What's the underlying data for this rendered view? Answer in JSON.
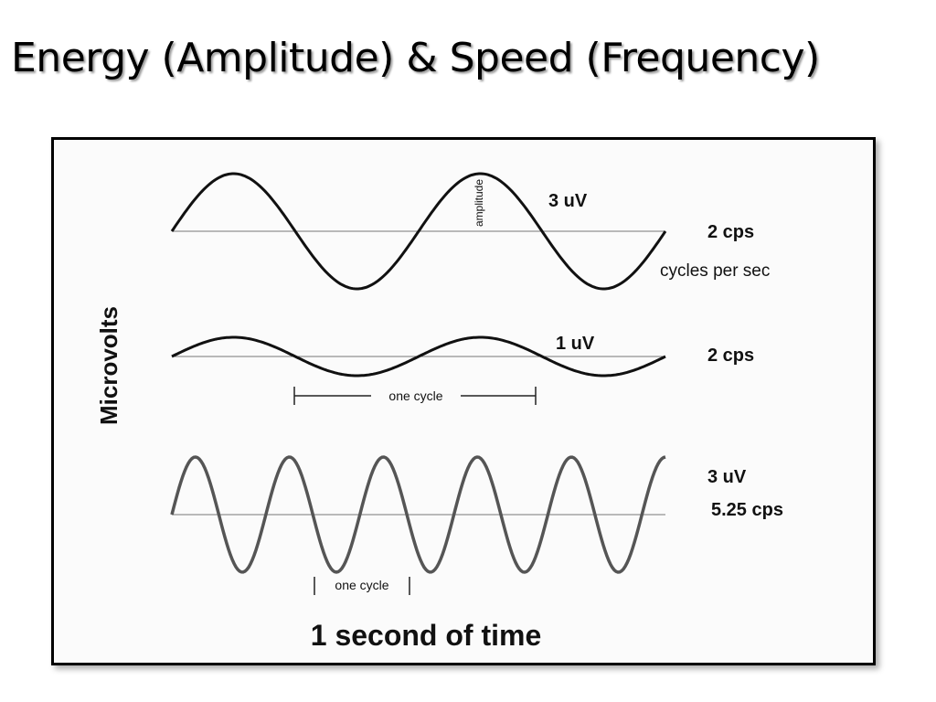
{
  "slide": {
    "title": "Energy (Amplitude) & Speed (Frequency)"
  },
  "diagram": {
    "y_axis_label": "Microvolts",
    "footer_label": "1 second of time",
    "amplitude_marker_label": "amplitude",
    "waves": [
      {
        "amplitude_label": "3 uV",
        "frequency_label": "2 cps",
        "frequency_note": "cycles per sec",
        "amplitude_uV": 3,
        "frequency_cps": 2
      },
      {
        "amplitude_label": "1 uV",
        "frequency_label": "2 cps",
        "cycle_label": "one cycle",
        "amplitude_uV": 1,
        "frequency_cps": 2
      },
      {
        "amplitude_label": "3 uV",
        "frequency_label": "5.25 cps",
        "cycle_label": "one cycle",
        "amplitude_uV": 3,
        "frequency_cps": 5.25
      }
    ],
    "colors": {
      "wave": "#111111",
      "wave_fast": "#555555",
      "baseline": "#777777"
    }
  }
}
